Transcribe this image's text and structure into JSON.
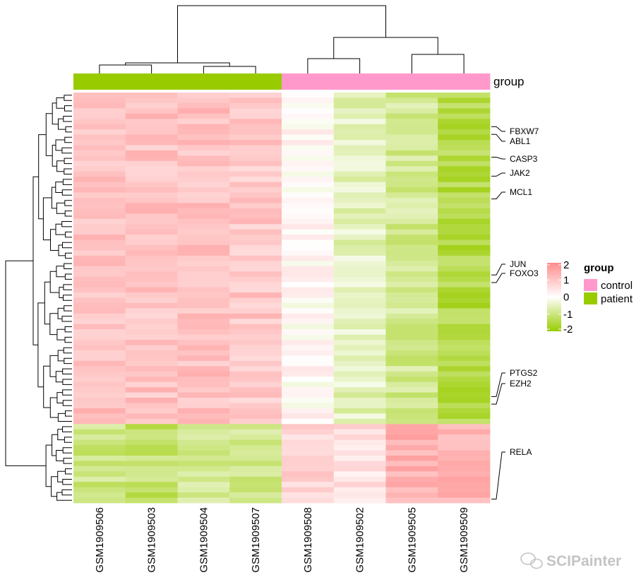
{
  "chart_data": {
    "type": "heatmap",
    "columns": [
      "GSM1909506",
      "GSM1909503",
      "GSM1909504",
      "GSM1909507",
      "GSM1909508",
      "GSM1909502",
      "GSM1909505",
      "GSM1909509"
    ],
    "column_groups": [
      "patient",
      "patient",
      "patient",
      "patient",
      "control",
      "control",
      "control",
      "control"
    ],
    "annotation_title": "group",
    "annotation_legend": [
      {
        "name": "control",
        "color": "#FF99CC"
      },
      {
        "name": "patient",
        "color": "#99CC00"
      }
    ],
    "labeled_genes": [
      "FBXW7",
      "ABL1",
      "CASP3",
      "JAK2",
      "MCL1",
      "JUN",
      "FOXO3",
      "PTGS2",
      "EZH2",
      "RELA"
    ],
    "color_scale": {
      "min": -2,
      "max": 2,
      "ticks": [
        2,
        1,
        0,
        -1,
        -2
      ],
      "colors": [
        "#99CC00",
        "#FFFFFF",
        "#FF8C8C"
      ]
    },
    "cluster_blocks": [
      {
        "id": "upper",
        "rows": 63,
        "values_by_column": [
          1.1,
          1.05,
          1.1,
          0.95,
          0.1,
          -0.5,
          -0.85,
          -1.45
        ]
      },
      {
        "id": "lower",
        "rows": 15,
        "values_by_column": [
          -1.0,
          -1.15,
          -0.8,
          -0.85,
          0.75,
          0.55,
          1.35,
          1.3
        ]
      }
    ],
    "row_dendrogram": true,
    "column_dendrogram": true
  },
  "watermark": {
    "text": "SCIPainter",
    "icon": "wechat-icon"
  }
}
